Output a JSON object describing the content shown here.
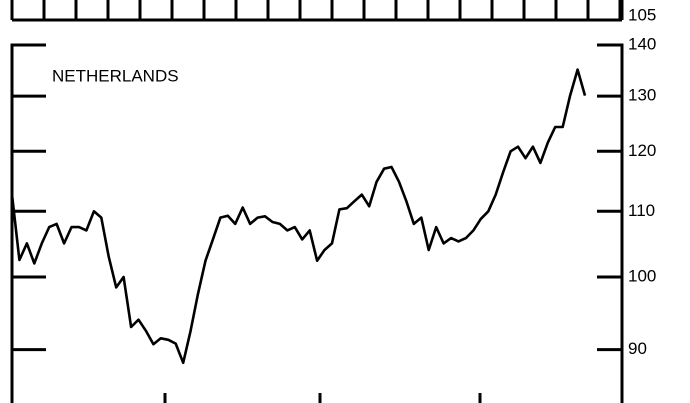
{
  "upper_panel": {
    "yticks": [
      105
    ]
  },
  "chart_data": {
    "type": "line",
    "title": "NETHERLANDS",
    "log_scale": true,
    "color": "#000000",
    "values": [
      112.7,
      102.5,
      105,
      102,
      105,
      107.5,
      108,
      105,
      107.5,
      107.5,
      107,
      110,
      109,
      103,
      98.5,
      100,
      93,
      94,
      92.5,
      90.7,
      91.5,
      91.3,
      90.8,
      88.3,
      92.5,
      97.6,
      102.4,
      105.6,
      109,
      109.3,
      108,
      110.6,
      108,
      109,
      109.2,
      108.3,
      108,
      107,
      107.5,
      105.6,
      107,
      102.4,
      104,
      105,
      110.3,
      110.5,
      111.6,
      112.7,
      110.8,
      114.8,
      117,
      117.3,
      114.8,
      111.6,
      108,
      109,
      104,
      107.5,
      105,
      105.8,
      105.3,
      105.8,
      107,
      108.8,
      110,
      112.7,
      116.4,
      120,
      120.8,
      118.8,
      120.8,
      118,
      121.5,
      124.3,
      124.3,
      130.1,
      135.1,
      130.1
    ],
    "ylim": [
      83.3,
      140
    ],
    "yticks": [
      90,
      100,
      110,
      120,
      130,
      140
    ]
  }
}
